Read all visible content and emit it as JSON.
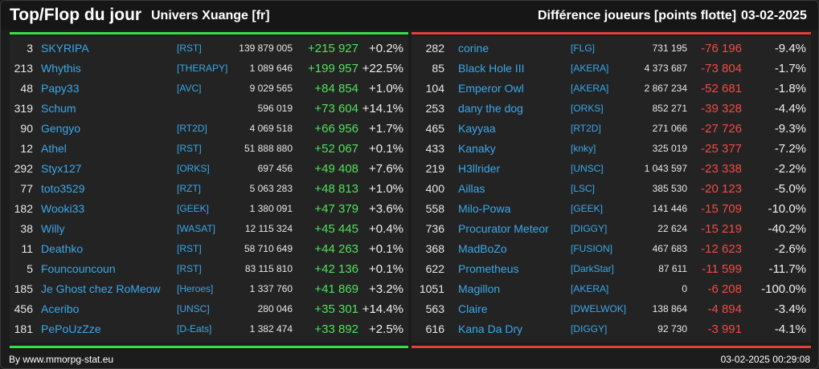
{
  "header": {
    "title": "Top/Flop du jour",
    "server": "Univers Xuange [fr]",
    "metric": "Différence joueurs [points flotte]",
    "date": "03-02-2025"
  },
  "colors": {
    "accent_top": "#3ddc4b",
    "accent_flop": "#e0413c",
    "name": "#3aa8ea",
    "positive": "#52e05c",
    "negative": "#f04b46"
  },
  "top": [
    {
      "rank": "3",
      "name": "SKYRIPA",
      "guild": "[RST]",
      "points": "139 879 005",
      "diff": "+215 927",
      "pct": "+0.2%"
    },
    {
      "rank": "213",
      "name": "Whythis",
      "guild": "[THERAPY]",
      "points": "1 089 646",
      "diff": "+199 957",
      "pct": "+22.5%"
    },
    {
      "rank": "48",
      "name": "Papy33",
      "guild": "[AVC]",
      "points": "9 029 565",
      "diff": "+84 854",
      "pct": "+1.0%"
    },
    {
      "rank": "319",
      "name": "Schum",
      "guild": "",
      "points": "596 019",
      "diff": "+73 604",
      "pct": "+14.1%"
    },
    {
      "rank": "90",
      "name": "Gengyo",
      "guild": "[RT2D]",
      "points": "4 069 518",
      "diff": "+66 956",
      "pct": "+1.7%"
    },
    {
      "rank": "12",
      "name": "Athel",
      "guild": "[RST]",
      "points": "51 888 880",
      "diff": "+52 067",
      "pct": "+0.1%"
    },
    {
      "rank": "292",
      "name": "Styx127",
      "guild": "[ORKS]",
      "points": "697 456",
      "diff": "+49 408",
      "pct": "+7.6%"
    },
    {
      "rank": "77",
      "name": "toto3529",
      "guild": "[RZT]",
      "points": "5 063 283",
      "diff": "+48 813",
      "pct": "+1.0%"
    },
    {
      "rank": "182",
      "name": "Wooki33",
      "guild": "[GEEK]",
      "points": "1 380 091",
      "diff": "+47 379",
      "pct": "+3.6%"
    },
    {
      "rank": "38",
      "name": "Willy",
      "guild": "[WASAT]",
      "points": "12 115 324",
      "diff": "+45 445",
      "pct": "+0.4%"
    },
    {
      "rank": "11",
      "name": "Deathko",
      "guild": "[RST]",
      "points": "58 710 649",
      "diff": "+44 263",
      "pct": "+0.1%"
    },
    {
      "rank": "5",
      "name": "Founcouncoun",
      "guild": "[RST]",
      "points": "83 115 810",
      "diff": "+42 136",
      "pct": "+0.1%"
    },
    {
      "rank": "185",
      "name": "Je Ghost chez RoMeow",
      "guild": "[Heroes]",
      "points": "1 337 760",
      "diff": "+41 869",
      "pct": "+3.2%"
    },
    {
      "rank": "456",
      "name": "Aceribo",
      "guild": "[UNSC]",
      "points": "280 046",
      "diff": "+35 301",
      "pct": "+14.4%"
    },
    {
      "rank": "181",
      "name": "PePoUzZze",
      "guild": "[D-Eats]",
      "points": "1 382 474",
      "diff": "+33 892",
      "pct": "+2.5%"
    }
  ],
  "flop": [
    {
      "rank": "282",
      "name": "corine",
      "guild": "[FLG]",
      "points": "731 195",
      "diff": "-76 196",
      "pct": "-9.4%"
    },
    {
      "rank": "85",
      "name": "Black Hole III",
      "guild": "[AKERA]",
      "points": "4 373 687",
      "diff": "-73 804",
      "pct": "-1.7%"
    },
    {
      "rank": "104",
      "name": "Emperor Owl",
      "guild": "[AKERA]",
      "points": "2 867 234",
      "diff": "-52 681",
      "pct": "-1.8%"
    },
    {
      "rank": "253",
      "name": "dany the dog",
      "guild": "[ORKS]",
      "points": "852 271",
      "diff": "-39 328",
      "pct": "-4.4%"
    },
    {
      "rank": "465",
      "name": "Kayyaa",
      "guild": "[RT2D]",
      "points": "271 066",
      "diff": "-27 726",
      "pct": "-9.3%"
    },
    {
      "rank": "433",
      "name": "Kanaky",
      "guild": "[knky]",
      "points": "325 019",
      "diff": "-25 377",
      "pct": "-7.2%"
    },
    {
      "rank": "219",
      "name": "H3llrider",
      "guild": "[UNSC]",
      "points": "1 043 597",
      "diff": "-23 338",
      "pct": "-2.2%"
    },
    {
      "rank": "400",
      "name": "Aillas",
      "guild": "[LSC]",
      "points": "385 530",
      "diff": "-20 123",
      "pct": "-5.0%"
    },
    {
      "rank": "558",
      "name": "Milo-Powa",
      "guild": "[GEEK]",
      "points": "141 446",
      "diff": "-15 709",
      "pct": "-10.0%"
    },
    {
      "rank": "736",
      "name": "Procurator Meteor",
      "guild": "[DIGGY]",
      "points": "22 624",
      "diff": "-15 219",
      "pct": "-40.2%"
    },
    {
      "rank": "368",
      "name": "MadBoZo",
      "guild": "[FUSION]",
      "points": "467 683",
      "diff": "-12 623",
      "pct": "-2.6%"
    },
    {
      "rank": "622",
      "name": "Prometheus",
      "guild": "[DarkStar]",
      "points": "87 611",
      "diff": "-11 599",
      "pct": "-11.7%"
    },
    {
      "rank": "1051",
      "name": "Magillon",
      "guild": "[AKERA]",
      "points": "0",
      "diff": "-6 208",
      "pct": "-100.0%"
    },
    {
      "rank": "563",
      "name": "Claire",
      "guild": "[DWELWOK]",
      "points": "138 864",
      "diff": "-4 894",
      "pct": "-3.4%"
    },
    {
      "rank": "616",
      "name": "Kana Da Dry",
      "guild": "[DIGGY]",
      "points": "92 730",
      "diff": "-3 991",
      "pct": "-4.1%"
    }
  ],
  "footer": {
    "credit": "By www.mmorpg-stat.eu",
    "timestamp": "03-02-2025 00:29:08"
  }
}
